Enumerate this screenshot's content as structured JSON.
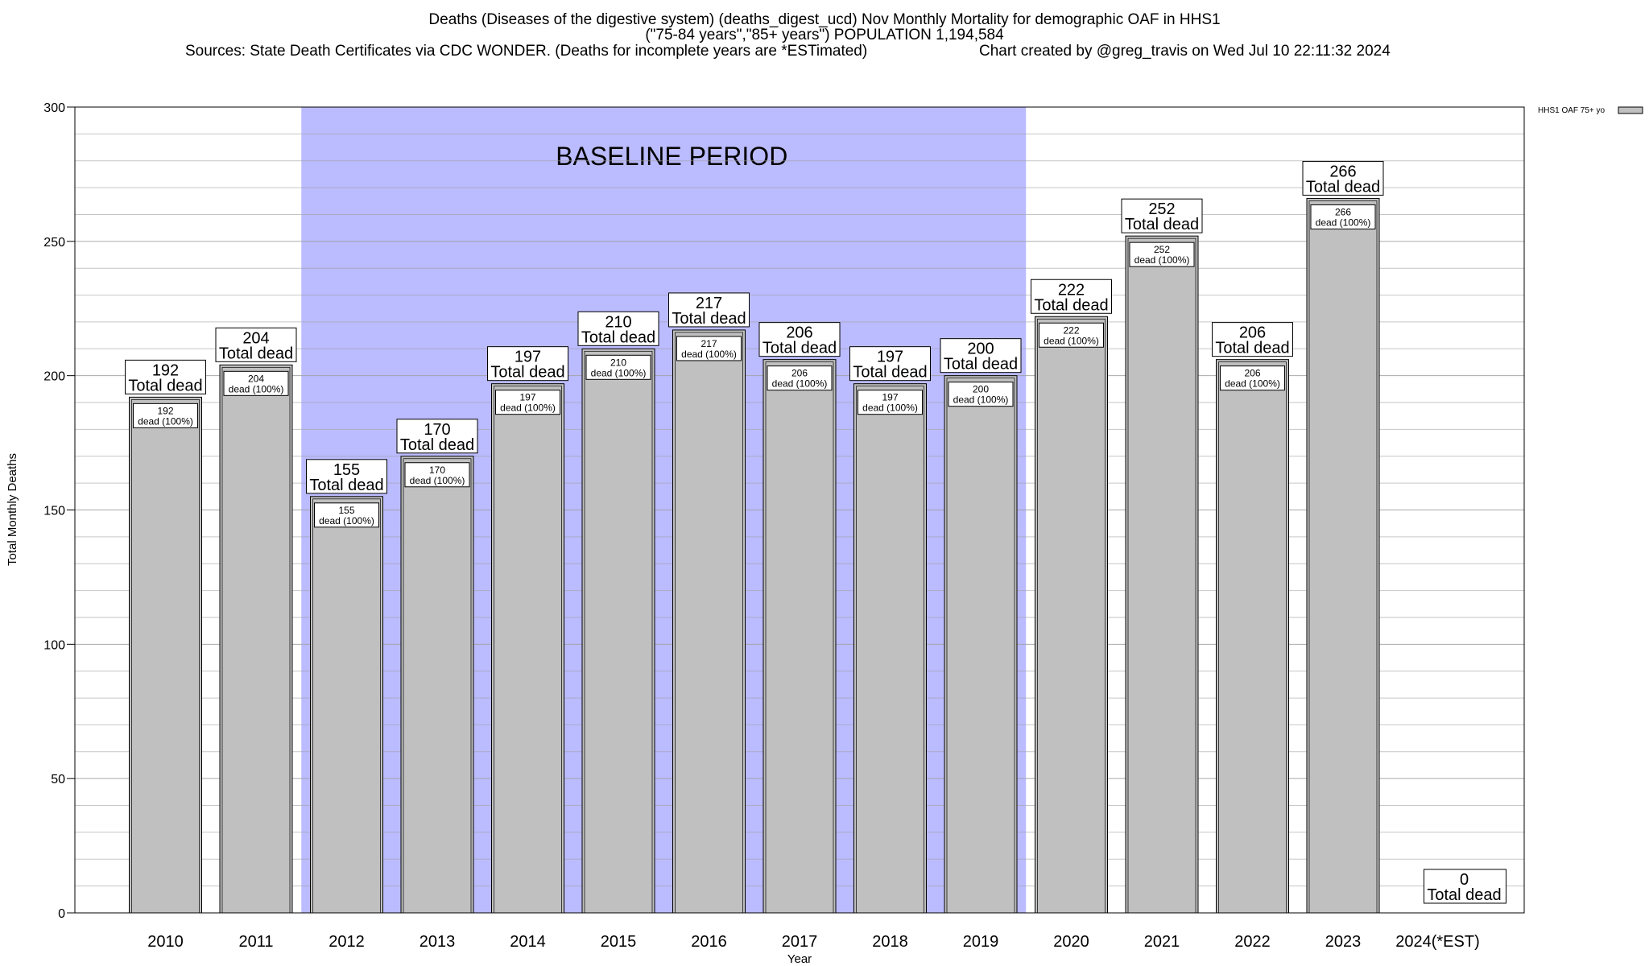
{
  "chart_data": {
    "type": "bar",
    "title_lines": [
      "Deaths (Diseases of the digestive system) (deaths_digest_ucd) Nov Monthly Mortality for demographic OAF in HHS1",
      "(\"75-84 years\",\"85+ years\") POPULATION 1,194,584"
    ],
    "sources": "Sources: State Death Certificates via CDC WONDER. (Deaths for incomplete years are *ESTimated)",
    "credit": "Chart created by @greg_travis on Wed Jul 10 22:11:32 2024",
    "xlabel": "Year",
    "ylabel": "Total Monthly Deaths",
    "ylim": [
      0,
      300
    ],
    "yticks": [
      0,
      50,
      100,
      150,
      200,
      250,
      300
    ],
    "grid": true,
    "legend_position": "top-right",
    "legend_label": "HHS1 OAF 75+ yo",
    "baseline_label": "BASELINE PERIOD",
    "baseline_range": [
      "2012",
      "2019"
    ],
    "categories": [
      "2010",
      "2011",
      "2012",
      "2013",
      "2014",
      "2015",
      "2016",
      "2017",
      "2018",
      "2019",
      "2020",
      "2021",
      "2022",
      "2023",
      "2024(*EST)"
    ],
    "series": [
      {
        "name": "HHS1 OAF 75+ yo",
        "values": [
          192,
          204,
          155,
          170,
          197,
          210,
          217,
          206,
          197,
          200,
          222,
          252,
          206,
          266,
          0
        ]
      }
    ],
    "total_label": "Total dead",
    "inner_label_suffix": "dead (100%)",
    "colors": {
      "bar_fill": "#c0c0c0",
      "baseline_fill": "#bbbbff",
      "grid": "#a0a0a0",
      "axis": "#000000"
    }
  }
}
